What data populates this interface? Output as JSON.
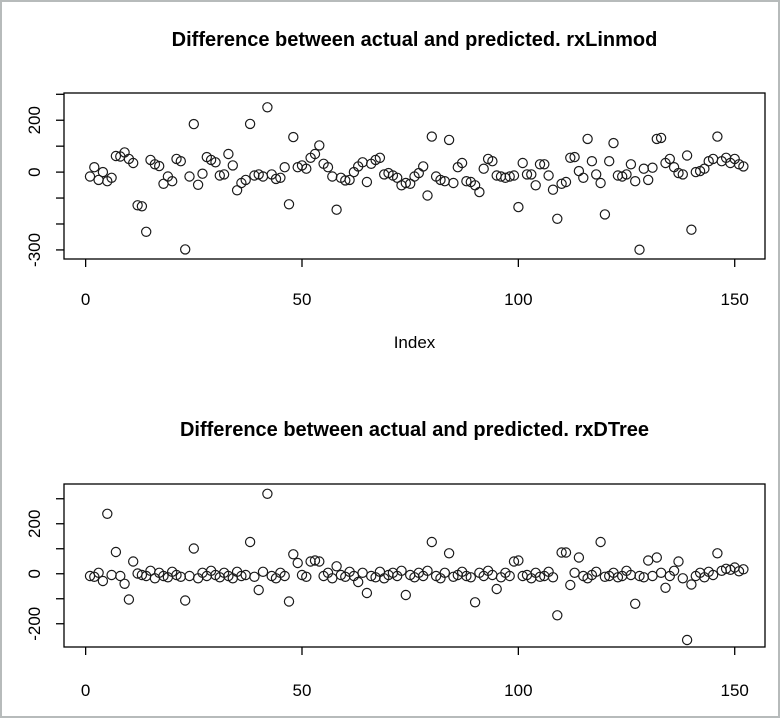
{
  "window": {
    "background": "#ffffff",
    "frame_border_color": "#b7bbbb",
    "plot_box_color": "#000000",
    "marker_color": "#1a1a1a"
  },
  "chart_data": [
    {
      "type": "scatter",
      "title": "Difference between actual and predicted. rxLinmod",
      "xlabel": "Index",
      "ylabel": "",
      "marker": "open-circle",
      "grid": false,
      "x_rule": "implicit index 1..152",
      "xlim": [
        -5,
        157
      ],
      "ylim": [
        -335,
        305
      ],
      "xticks": [
        0,
        50,
        100,
        150
      ],
      "yticks": [
        300,
        200,
        100,
        0,
        -100,
        -200,
        -300
      ],
      "ytick_labeled": [
        200,
        0,
        -300
      ],
      "values": [
        -17,
        19,
        -30,
        0,
        -35,
        -22,
        62,
        60,
        76,
        51,
        35,
        -128,
        -132,
        -230,
        47,
        30,
        23,
        -45,
        -17,
        -35,
        51,
        42,
        -298,
        -17,
        185,
        -49,
        -6,
        58,
        47,
        38,
        -13,
        -9,
        70,
        26,
        -70,
        -42,
        -30,
        186,
        -13,
        -9,
        -17,
        250,
        -9,
        -26,
        -22,
        19,
        -124,
        135,
        19,
        26,
        13,
        55,
        70,
        103,
        32,
        19,
        -17,
        -145,
        -22,
        -32,
        -30,
        0,
        22,
        38,
        -38,
        32,
        47,
        55,
        -9,
        -4,
        -13,
        -22,
        -51,
        -42,
        -45,
        -17,
        -4,
        22,
        -90,
        137,
        -17,
        -30,
        -35,
        124,
        -42,
        19,
        35,
        -35,
        -38,
        -51,
        -77,
        13,
        51,
        42,
        -13,
        -17,
        -22,
        -17,
        -13,
        -135,
        35,
        -9,
        -9,
        -51,
        30,
        30,
        -13,
        -68,
        -180,
        -45,
        -38,
        55,
        58,
        4,
        -22,
        128,
        42,
        -9,
        -42,
        -163,
        42,
        112,
        -13,
        -17,
        -9,
        30,
        -35,
        -299,
        13,
        -30,
        17,
        128,
        132,
        35,
        51,
        19,
        -4,
        -9,
        64,
        -222,
        0,
        4,
        13,
        42,
        51,
        137,
        42,
        55,
        35,
        51,
        30,
        22
      ]
    },
    {
      "type": "scatter",
      "title": "Difference between actual and predicted. rxDTree",
      "xlabel": "",
      "ylabel": "",
      "marker": "open-circle",
      "grid": false,
      "x_rule": "implicit index 1..152",
      "xlim": [
        -5,
        157
      ],
      "ylim": [
        -293,
        359
      ],
      "xticks": [
        0,
        50,
        100,
        150
      ],
      "yticks": [
        300,
        200,
        100,
        0,
        -100,
        -200
      ],
      "ytick_labeled": [
        200,
        0,
        -200
      ],
      "values": [
        -9,
        -12,
        4,
        -29,
        240,
        -5,
        87,
        -9,
        -40,
        -103,
        49,
        1,
        -5,
        -9,
        12,
        -18,
        4,
        -9,
        -14,
        8,
        -5,
        -12,
        -107,
        -9,
        101,
        -18,
        4,
        -9,
        12,
        -5,
        -14,
        4,
        -9,
        -18,
        8,
        -9,
        -5,
        127,
        -12,
        -65,
        8,
        320,
        -9,
        -18,
        4,
        -9,
        -111,
        78,
        43,
        -5,
        -12,
        49,
        53,
        49,
        -9,
        4,
        -18,
        30,
        -5,
        -12,
        8,
        -9,
        -33,
        4,
        -77,
        -9,
        -14,
        8,
        -18,
        -5,
        4,
        -9,
        12,
        -85,
        -5,
        -14,
        4,
        -9,
        12,
        127,
        -9,
        -18,
        4,
        82,
        -12,
        -5,
        8,
        -9,
        -14,
        -114,
        4,
        -9,
        12,
        -5,
        -61,
        -14,
        4,
        -9,
        49,
        53,
        -9,
        -5,
        -18,
        4,
        -12,
        -9,
        8,
        -14,
        -166,
        85,
        85,
        -45,
        4,
        65,
        -9,
        -18,
        -5,
        8,
        127,
        -12,
        -9,
        4,
        -14,
        -9,
        12,
        -5,
        -120,
        -9,
        -14,
        53,
        -9,
        65,
        4,
        -56,
        -9,
        12,
        49,
        -18,
        -265,
        -43,
        -9,
        4,
        -14,
        8,
        -5,
        82,
        12,
        20,
        16,
        25,
        10,
        18
      ]
    }
  ]
}
